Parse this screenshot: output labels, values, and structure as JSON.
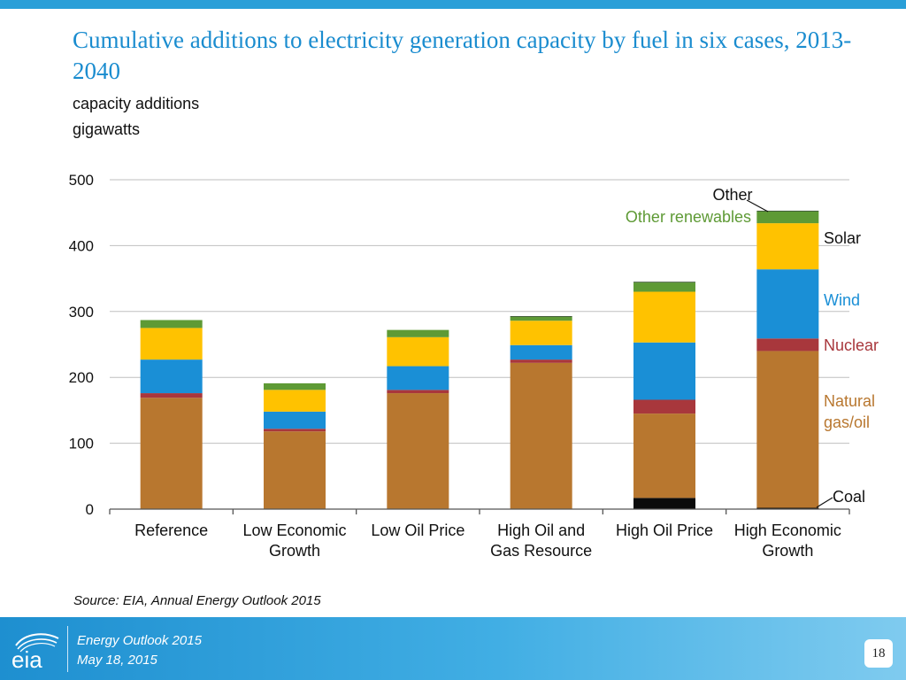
{
  "header": {
    "title": "Cumulative additions to electricity generation capacity by fuel in six cases, 2013-2040",
    "subtitle_line1": "capacity additions",
    "subtitle_line2": "gigawatts"
  },
  "colors": {
    "accent": "#2a9fd8",
    "title": "#1a8ccf",
    "coal": "#0b0b0b",
    "natural_gas_oil": "#b8772f",
    "nuclear": "#a8373c",
    "wind": "#1a8fd6",
    "solar": "#ffc200",
    "other_renewables": "#5e9a35",
    "other": "#1f3a17",
    "grid": "#bfbfbf"
  },
  "chart_data": {
    "type": "bar",
    "stacked": true,
    "title": "Cumulative additions to electricity generation capacity by fuel in six cases, 2013-2040",
    "ylabel": "gigawatts",
    "ylim": [
      0,
      500
    ],
    "yticks": [
      0,
      100,
      200,
      300,
      400,
      500
    ],
    "grid": true,
    "categories": [
      [
        "Reference"
      ],
      [
        "Low Economic",
        "Growth"
      ],
      [
        "Low Oil Price"
      ],
      [
        "High Oil and",
        "Gas Resource"
      ],
      [
        "High Oil Price"
      ],
      [
        "High Economic",
        "Growth"
      ]
    ],
    "series": [
      {
        "name": "Coal",
        "key": "coal",
        "color": "#0b0b0b",
        "label_color": "#111111",
        "values": [
          0,
          0,
          0,
          0,
          17,
          2
        ]
      },
      {
        "name": "Natural gas/oil",
        "key": "natural_gas_oil",
        "color": "#b8772f",
        "label_color": "#b8772f",
        "values": [
          169,
          118,
          176,
          222,
          128,
          238
        ]
      },
      {
        "name": "Nuclear",
        "key": "nuclear",
        "color": "#a8373c",
        "label_color": "#a8373c",
        "values": [
          7,
          4,
          5,
          5,
          21,
          19
        ]
      },
      {
        "name": "Wind",
        "key": "wind",
        "color": "#1a8fd6",
        "label_color": "#1a8fd6",
        "values": [
          51,
          26,
          36,
          22,
          87,
          105
        ]
      },
      {
        "name": "Solar",
        "key": "solar",
        "color": "#ffc200",
        "label_color": "#111111",
        "values": [
          48,
          33,
          44,
          37,
          77,
          70
        ]
      },
      {
        "name": "Other renewables",
        "key": "other_renewables",
        "color": "#5e9a35",
        "label_color": "#5e9a35",
        "values": [
          12,
          10,
          11,
          6,
          14,
          18
        ]
      },
      {
        "name": "Other",
        "key": "other",
        "color": "#1f3a17",
        "label_color": "#111111",
        "values": [
          0,
          0,
          0,
          1,
          1,
          1
        ]
      }
    ],
    "legend_labels": {
      "other": "Other",
      "other_renewables": "Other renewables",
      "solar": "Solar",
      "wind": "Wind",
      "nuclear": "Nuclear",
      "natural_gas_oil_line1": "Natural",
      "natural_gas_oil_line2": "gas/oil",
      "coal": "Coal"
    },
    "legend_placement": "right, labels beside the High Economic Growth bar"
  },
  "source": "Source:  EIA, Annual Energy Outlook 2015",
  "footer": {
    "logo_text": "eia",
    "line1": "Energy  Outlook 2015",
    "line2": "May 18, 2015",
    "page_number": "18"
  }
}
